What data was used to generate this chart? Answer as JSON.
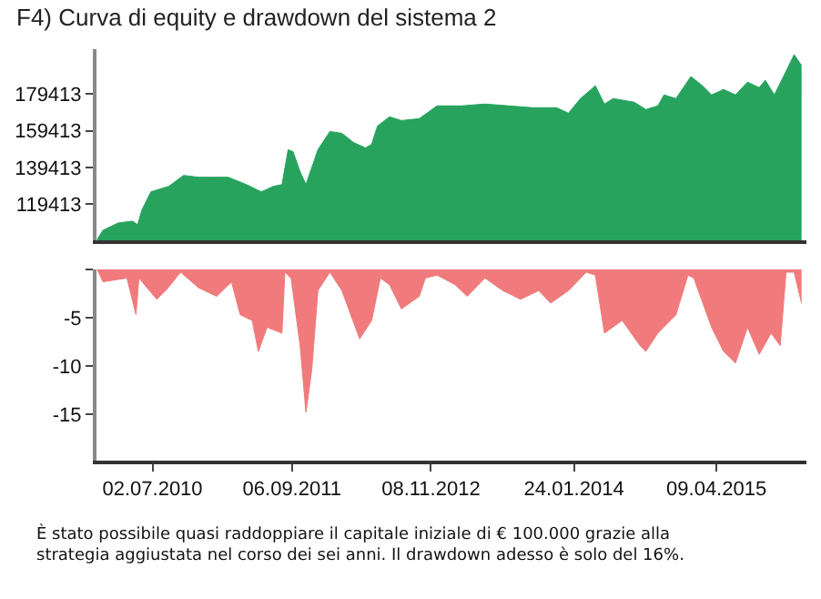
{
  "chart_data": [
    {
      "type": "area",
      "title": "F4) Curva di equity e drawdown del sistema 2",
      "tick_labels": "y",
      "xlim": [
        "2010-01-10",
        "2016-01-12"
      ],
      "ylim": [
        99413,
        204000
      ],
      "yticks": [
        119413,
        139413,
        159413,
        179413
      ],
      "series": [
        {
          "color": "#27a35e",
          "x": [
            "2010-01-12",
            "2010-01-30",
            "2010-03-18",
            "2010-05-02",
            "2010-05-17",
            "2010-05-30",
            "2010-06-27",
            "2010-07-15",
            "2010-08-21",
            "2010-10-06",
            "2010-11-21",
            "2011-01-06",
            "2011-02-21",
            "2011-04-18",
            "2011-06-03",
            "2011-07-10",
            "2011-08-06",
            "2011-08-25",
            "2011-09-09",
            "2011-10-01",
            "2011-10-19",
            "2011-11-25",
            "2012-01-01",
            "2012-02-07",
            "2012-03-14",
            "2012-04-20",
            "2012-05-09",
            "2012-05-27",
            "2012-07-03",
            "2012-08-09",
            "2012-10-03",
            "2012-11-27",
            "2013-02-09",
            "2013-04-24",
            "2013-07-07",
            "2013-09-18",
            "2013-12-01",
            "2014-01-07",
            "2014-02-13",
            "2014-03-31",
            "2014-04-28",
            "2014-05-25",
            "2014-07-29",
            "2014-09-03",
            "2014-10-10",
            "2014-10-29",
            "2014-12-05",
            "2015-01-20",
            "2015-02-25",
            "2015-03-25",
            "2015-05-01",
            "2015-06-07",
            "2015-07-14",
            "2015-08-19",
            "2015-09-07",
            "2015-10-05",
            "2015-11-02",
            "2015-12-05",
            "2015-12-28"
          ],
          "values": [
            100000,
            105000,
            109000,
            110000,
            108000,
            116000,
            126000,
            127000,
            129000,
            135000,
            134000,
            134000,
            134000,
            130000,
            126000,
            129000,
            130000,
            149000,
            148000,
            137000,
            130000,
            149000,
            159000,
            158000,
            153000,
            150000,
            152000,
            162000,
            167000,
            165000,
            166000,
            173000,
            173000,
            174000,
            173000,
            172000,
            172000,
            169000,
            177000,
            184000,
            174000,
            177000,
            175000,
            171000,
            173000,
            179000,
            177000,
            189000,
            184000,
            179000,
            182000,
            179000,
            186000,
            183000,
            187000,
            179000,
            189000,
            201000,
            195000
          ]
        }
      ]
    },
    {
      "type": "area",
      "xlim": [
        "2010-01-10",
        "2016-01-12"
      ],
      "ylim": [
        -19.8,
        0
      ],
      "xticks": [
        {
          "value": "2010-07-02",
          "label": "02.07.2010"
        },
        {
          "value": "2011-09-06",
          "label": "06.09.2011"
        },
        {
          "value": "2012-11-08",
          "label": "08.11.2012"
        },
        {
          "value": "2014-01-24",
          "label": "24.01.2014"
        },
        {
          "value": "2015-04-09",
          "label": "09.04.2015"
        }
      ],
      "yticks": [
        {
          "value": 0,
          "label": null
        },
        -5,
        -10,
        -15
      ],
      "annotations": [
        "È stato possibile quasi raddoppiare il capitale iniziale di € 100.000 grazie alla strategia aggiustata nel corso dei sei anni. Il drawdown adesso è solo del 16%."
      ],
      "series": [
        {
          "color": "#f07a7c",
          "x": [
            "2010-01-12",
            "2010-01-30",
            "2010-04-14",
            "2010-05-12",
            "2010-05-21",
            "2010-07-15",
            "2010-08-12",
            "2010-09-27",
            "2010-11-21",
            "2011-01-16",
            "2011-03-03",
            "2011-03-30",
            "2011-05-06",
            "2011-05-25",
            "2011-06-21",
            "2011-08-06",
            "2011-08-15",
            "2011-09-03",
            "2011-10-01",
            "2011-10-19",
            "2011-11-06",
            "2011-11-25",
            "2012-01-01",
            "2012-02-07",
            "2012-04-02",
            "2012-05-09",
            "2012-06-05",
            "2012-07-03",
            "2012-08-09",
            "2012-10-03",
            "2012-10-22",
            "2012-11-27",
            "2013-01-22",
            "2013-02-28",
            "2013-04-24",
            "2013-06-18",
            "2013-08-12",
            "2013-10-07",
            "2013-11-13",
            "2014-01-07",
            "2014-03-03",
            "2014-03-31",
            "2014-04-28",
            "2014-06-22",
            "2014-08-16",
            "2014-09-03",
            "2014-10-10",
            "2014-12-05",
            "2015-01-11",
            "2015-01-29",
            "2015-03-25",
            "2015-05-01",
            "2015-06-07",
            "2015-07-14",
            "2015-08-19",
            "2015-09-25",
            "2015-10-23",
            "2015-11-10",
            "2015-12-05",
            "2015-12-28"
          ],
          "values": [
            0,
            -1.3,
            -0.9,
            -4.7,
            -0.9,
            -3.1,
            -2.2,
            -0.3,
            -1.9,
            -2.8,
            -1.3,
            -4.7,
            -5.3,
            -8.5,
            -6.0,
            -6.6,
            -0.3,
            -0.9,
            -7.9,
            -14.8,
            -10.4,
            -2.2,
            -0.3,
            -2.2,
            -7.2,
            -5.3,
            -0.9,
            -1.6,
            -4.1,
            -2.8,
            -0.9,
            -0.6,
            -1.6,
            -2.8,
            -0.9,
            -2.2,
            -3.1,
            -2.2,
            -3.5,
            -2.2,
            -0.3,
            -0.6,
            -6.6,
            -5.3,
            -7.9,
            -8.5,
            -6.6,
            -4.7,
            -0.6,
            -0.9,
            -6.0,
            -8.5,
            -9.7,
            -6.0,
            -8.8,
            -6.6,
            -7.9,
            -0.3,
            -0.3,
            -3.5
          ]
        }
      ]
    }
  ]
}
